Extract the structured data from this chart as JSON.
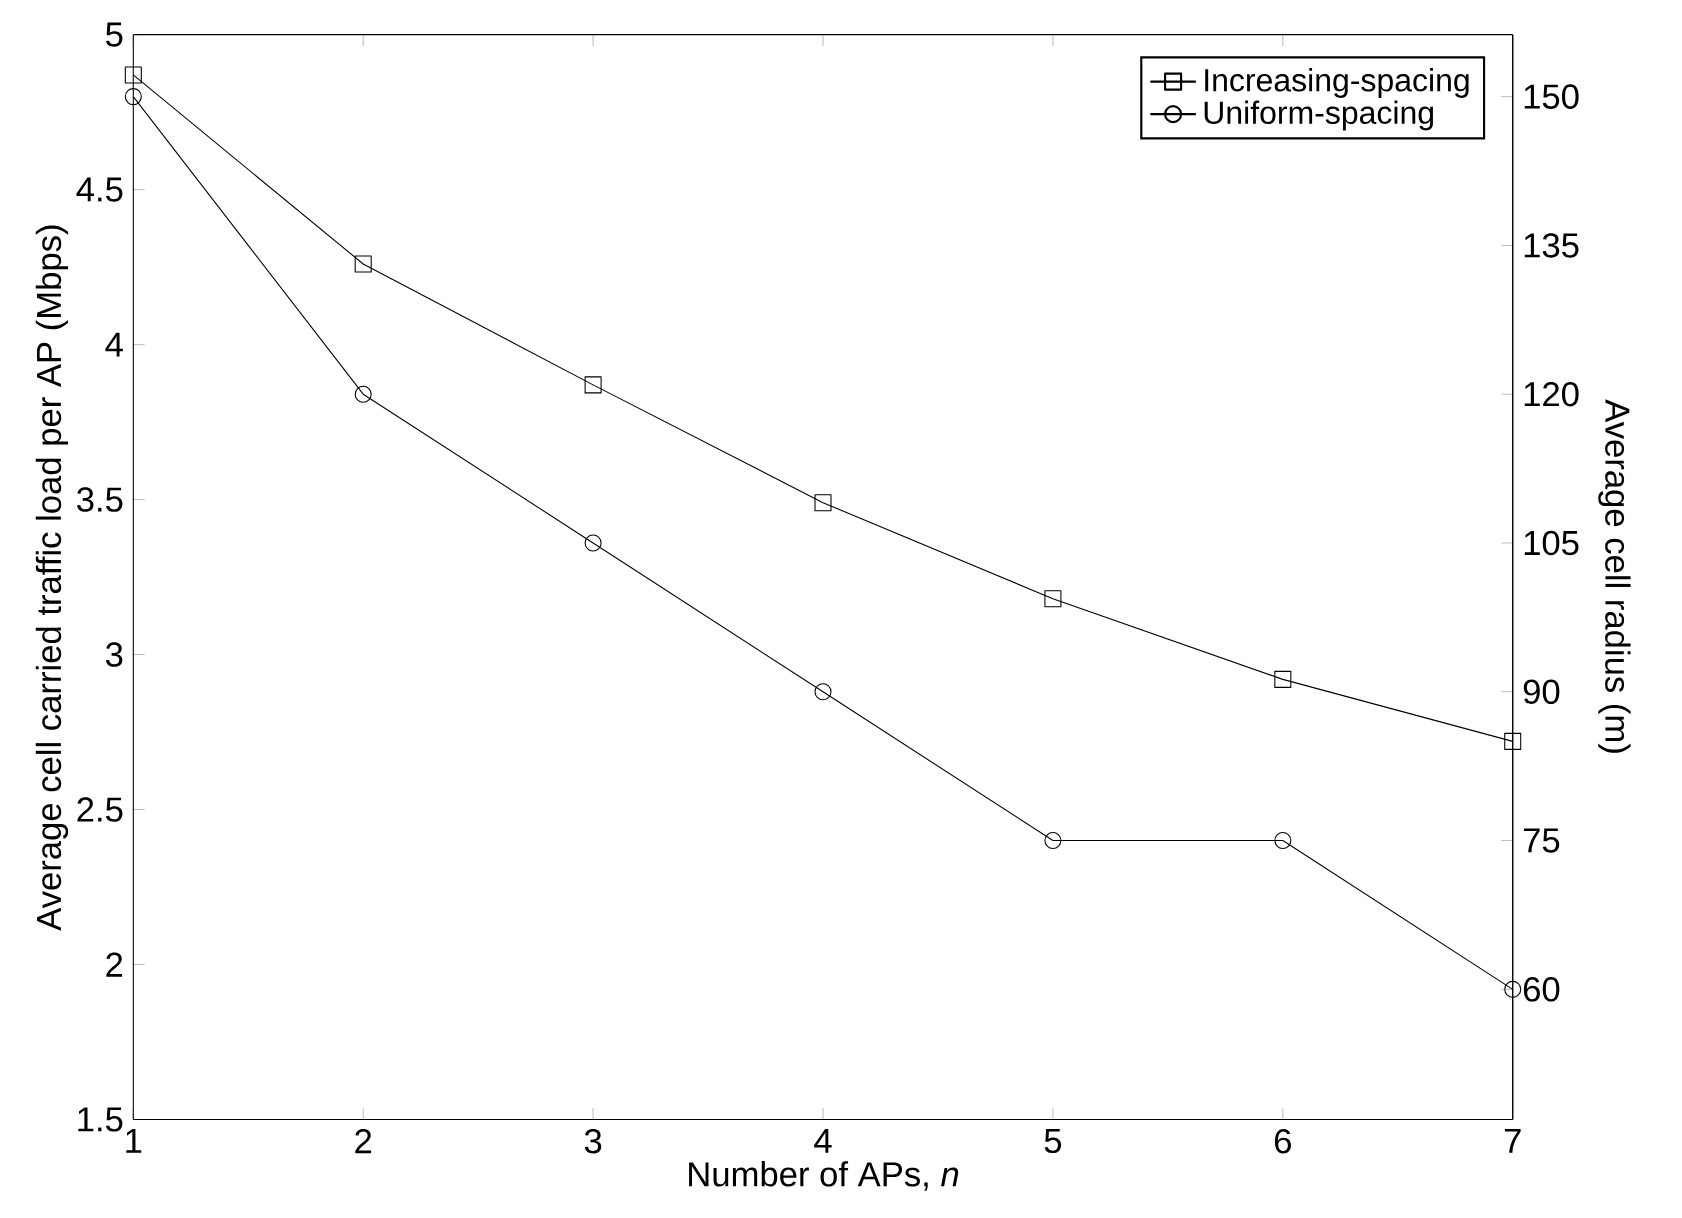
{
  "chart_data": {
    "type": "line",
    "xlabel": "Number of APs, *n*",
    "ylabel": "Average cell carried traffic load per AP (Mbps)",
    "y2label": "Average cell radius (m)",
    "x": [
      1,
      2,
      3,
      4,
      5,
      6,
      7
    ],
    "series": [
      {
        "name": "Increasing-spacing",
        "color": "#000000",
        "marker": "square",
        "values": [
          4.87,
          4.26,
          3.87,
          3.49,
          3.18,
          2.92,
          2.72
        ]
      },
      {
        "name": "Uniform-spacing",
        "color": "#000000",
        "marker": "circle",
        "axis": "y2",
        "values": [
          150,
          120,
          105,
          90,
          75,
          75,
          60
        ]
      }
    ],
    "xlim": [
      1,
      7
    ],
    "xticks": [
      1,
      2,
      3,
      4,
      5,
      6,
      7
    ],
    "ylim": [
      1.5,
      5
    ],
    "yticks": [
      1.5,
      2,
      2.5,
      3,
      3.5,
      4,
      4.5,
      5
    ],
    "y2lim": [
      46.875,
      156.25
    ],
    "y2ticks": [
      60,
      75,
      90,
      105,
      120,
      135,
      150
    ],
    "grid": false,
    "legend": "top right",
    "line_style": "solid"
  }
}
